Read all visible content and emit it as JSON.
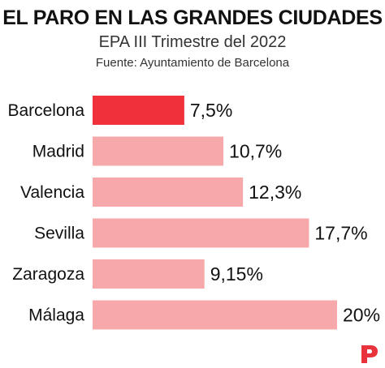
{
  "colors": {
    "highlight": "#f0313b",
    "bar": "#f7a8aa",
    "logo": "#e8323c"
  },
  "logo_icon": "publisher-p-logo-icon",
  "chart_data": {
    "type": "bar",
    "orientation": "horizontal",
    "title": "EL PARO EN LAS GRANDES CIUDADES",
    "subtitle": "EPA III Trimestre del 2022",
    "source": "Fuente: Ayuntamiento de Barcelona",
    "categories": [
      "Barcelona",
      "Madrid",
      "Valencia",
      "Sevilla",
      "Zaragoza",
      "Málaga"
    ],
    "values": [
      7.5,
      10.7,
      12.3,
      17.7,
      9.15,
      20
    ],
    "value_labels": [
      "7,5%",
      "10,7%",
      "12,3%",
      "17,7%",
      "9,15%",
      "20%"
    ],
    "highlighted_category": "Barcelona",
    "xlim": [
      0,
      20
    ],
    "grid": false,
    "legend": "none"
  }
}
